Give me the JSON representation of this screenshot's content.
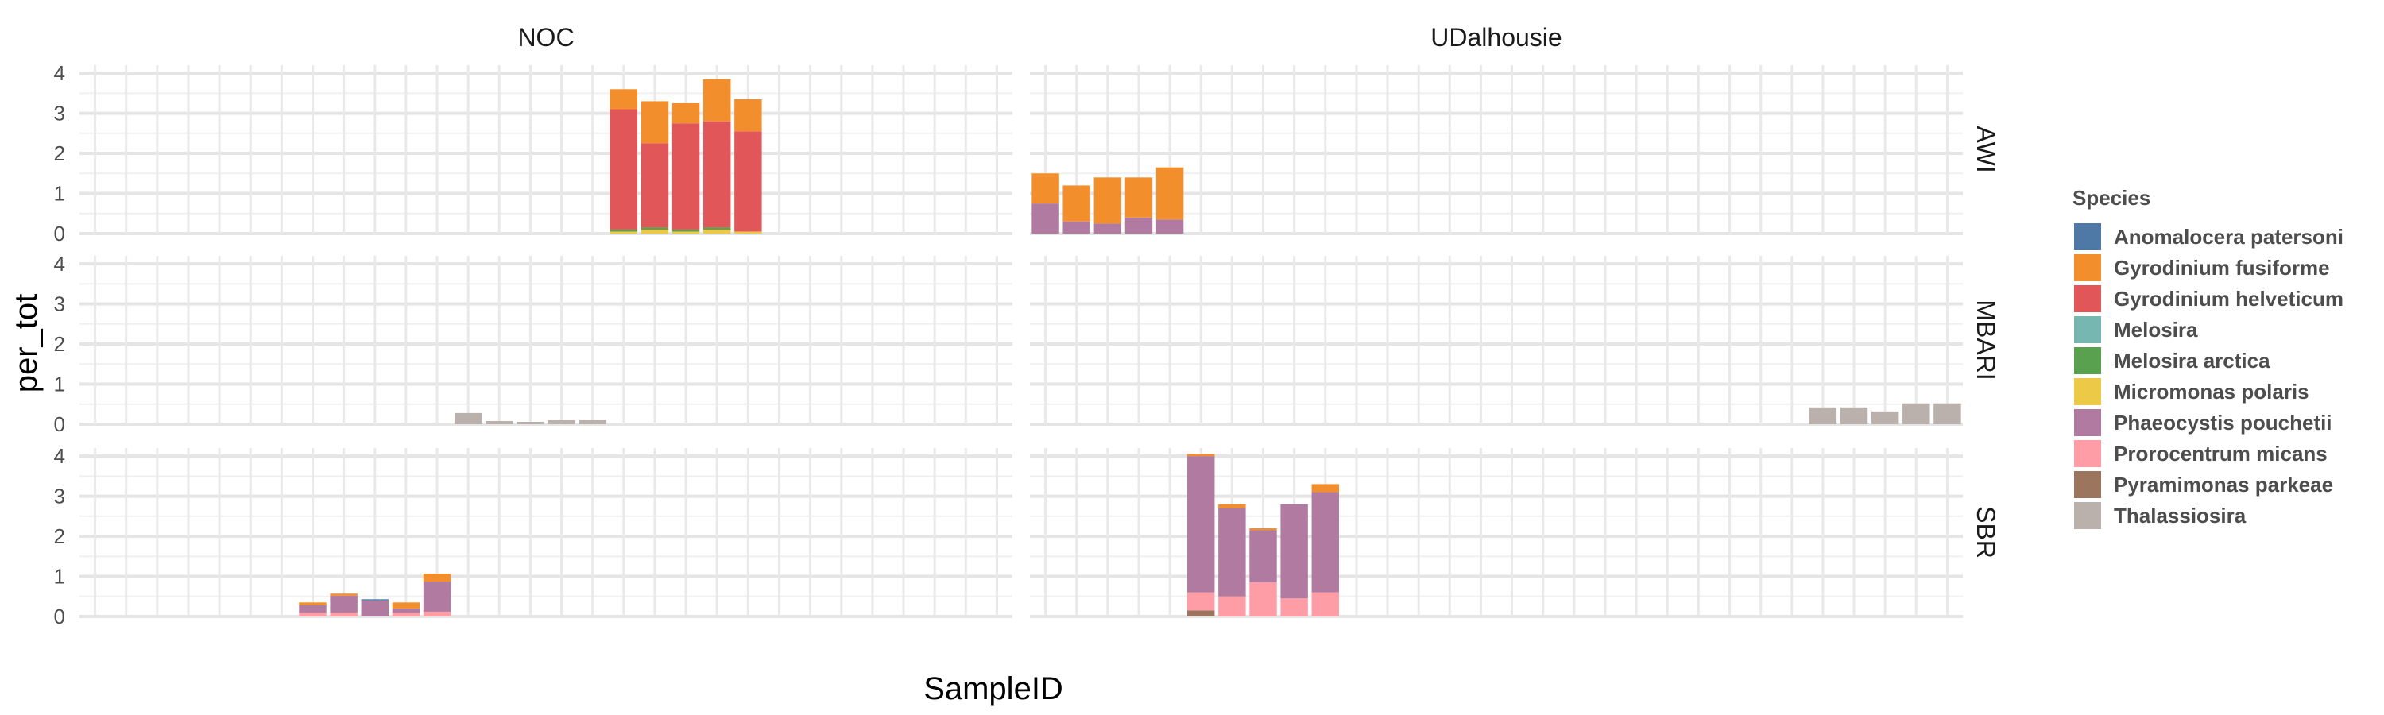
{
  "chart_data": {
    "type": "bar",
    "stacked": true,
    "faceted": true,
    "xlabel": "SampleID",
    "ylabel": "per_tot",
    "ylim": [
      0,
      4.2
    ],
    "yticks": [
      0,
      1,
      2,
      3,
      4
    ],
    "grid": true,
    "legend": {
      "title": "Species",
      "placement": "right"
    },
    "column_facets": [
      "NOC",
      "UDalhousie"
    ],
    "row_facets": [
      "AWI",
      "MBARI",
      "SBR"
    ],
    "species": [
      {
        "name": "Anomalocera patersoni",
        "color": "#4E79A7"
      },
      {
        "name": "Gyrodinium fusiforme",
        "color": "#F28E2B"
      },
      {
        "name": "Gyrodinium helveticum",
        "color": "#E15759"
      },
      {
        "name": "Melosira",
        "color": "#76B7B2"
      },
      {
        "name": "Melosira arctica",
        "color": "#59A14F"
      },
      {
        "name": "Micromonas polaris",
        "color": "#EDC948"
      },
      {
        "name": "Phaeocystis pouchetii",
        "color": "#B07AA1"
      },
      {
        "name": "Prorocentrum micans",
        "color": "#FF9DA7"
      },
      {
        "name": "Pyramimonas parkeae",
        "color": "#9C755F"
      },
      {
        "name": "Thalassiosira",
        "color": "#BAB0AC"
      }
    ],
    "x_tick_count": 30,
    "x_tick_labels_note": "overlapping SampleID tick labels are illegible in the original",
    "panels": [
      {
        "col": "NOC",
        "row": "AWI",
        "bars": [
          {
            "pos": 17,
            "segments": {
              "Gyrodinium fusiforme": 0.5,
              "Gyrodinium helveticum": 3.0,
              "Micromonas polaris": 0.05,
              "Melosira arctica": 0.05
            }
          },
          {
            "pos": 18,
            "segments": {
              "Gyrodinium fusiforme": 1.05,
              "Gyrodinium helveticum": 2.1,
              "Micromonas polaris": 0.1,
              "Melosira arctica": 0.05
            }
          },
          {
            "pos": 19,
            "segments": {
              "Gyrodinium fusiforme": 0.5,
              "Gyrodinium helveticum": 2.65,
              "Micromonas polaris": 0.05,
              "Melosira arctica": 0.05
            }
          },
          {
            "pos": 20,
            "segments": {
              "Gyrodinium fusiforme": 1.05,
              "Gyrodinium helveticum": 2.65,
              "Micromonas polaris": 0.1,
              "Melosira arctica": 0.05
            }
          },
          {
            "pos": 21,
            "segments": {
              "Gyrodinium fusiforme": 0.8,
              "Gyrodinium helveticum": 2.5,
              "Micromonas polaris": 0.05
            }
          }
        ]
      },
      {
        "col": "UDalhousie",
        "row": "AWI",
        "bars": [
          {
            "pos": 0,
            "segments": {
              "Phaeocystis pouchetii": 0.75,
              "Gyrodinium fusiforme": 0.75
            }
          },
          {
            "pos": 1,
            "segments": {
              "Phaeocystis pouchetii": 0.3,
              "Gyrodinium fusiforme": 0.9
            }
          },
          {
            "pos": 2,
            "segments": {
              "Phaeocystis pouchetii": 0.25,
              "Gyrodinium fusiforme": 1.15
            }
          },
          {
            "pos": 3,
            "segments": {
              "Phaeocystis pouchetii": 0.4,
              "Gyrodinium fusiforme": 1.0
            }
          },
          {
            "pos": 4,
            "segments": {
              "Phaeocystis pouchetii": 0.35,
              "Gyrodinium fusiforme": 1.3
            }
          }
        ]
      },
      {
        "col": "NOC",
        "row": "MBARI",
        "bars": [
          {
            "pos": 12,
            "segments": {
              "Thalassiosira": 0.28
            }
          },
          {
            "pos": 13,
            "segments": {
              "Thalassiosira": 0.08
            }
          },
          {
            "pos": 14,
            "segments": {
              "Thalassiosira": 0.06
            }
          },
          {
            "pos": 15,
            "segments": {
              "Thalassiosira": 0.1
            }
          },
          {
            "pos": 16,
            "segments": {
              "Thalassiosira": 0.1
            }
          }
        ]
      },
      {
        "col": "UDalhousie",
        "row": "MBARI",
        "bars": [
          {
            "pos": 25,
            "segments": {
              "Thalassiosira": 0.42
            }
          },
          {
            "pos": 26,
            "segments": {
              "Thalassiosira": 0.42
            }
          },
          {
            "pos": 27,
            "segments": {
              "Thalassiosira": 0.32
            }
          },
          {
            "pos": 28,
            "segments": {
              "Thalassiosira": 0.52
            }
          },
          {
            "pos": 29,
            "segments": {
              "Thalassiosira": 0.52
            }
          }
        ]
      },
      {
        "col": "NOC",
        "row": "SBR",
        "bars": [
          {
            "pos": 7,
            "segments": {
              "Prorocentrum micans": 0.1,
              "Phaeocystis pouchetii": 0.18,
              "Gyrodinium fusiforme": 0.07
            }
          },
          {
            "pos": 8,
            "segments": {
              "Prorocentrum micans": 0.1,
              "Phaeocystis pouchetii": 0.42,
              "Gyrodinium fusiforme": 0.05
            }
          },
          {
            "pos": 9,
            "segments": {
              "Phaeocystis pouchetii": 0.4,
              "Anomalocera patersoni": 0.03
            }
          },
          {
            "pos": 10,
            "segments": {
              "Prorocentrum micans": 0.1,
              "Phaeocystis pouchetii": 0.1,
              "Gyrodinium fusiforme": 0.15
            }
          },
          {
            "pos": 11,
            "segments": {
              "Prorocentrum micans": 0.12,
              "Phaeocystis pouchetii": 0.75,
              "Gyrodinium fusiforme": 0.2
            }
          }
        ]
      },
      {
        "col": "UDalhousie",
        "row": "SBR",
        "bars": [
          {
            "pos": 5,
            "segments": {
              "Pyramimonas parkeae": 0.15,
              "Prorocentrum micans": 0.45,
              "Phaeocystis pouchetii": 3.4,
              "Gyrodinium fusiforme": 0.05
            }
          },
          {
            "pos": 6,
            "segments": {
              "Prorocentrum micans": 0.5,
              "Phaeocystis pouchetii": 2.2,
              "Gyrodinium fusiforme": 0.1
            }
          },
          {
            "pos": 7,
            "segments": {
              "Prorocentrum micans": 0.85,
              "Phaeocystis pouchetii": 1.3,
              "Gyrodinium fusiforme": 0.05
            }
          },
          {
            "pos": 8,
            "segments": {
              "Prorocentrum micans": 0.45,
              "Phaeocystis pouchetii": 2.35
            }
          },
          {
            "pos": 9,
            "segments": {
              "Prorocentrum micans": 0.6,
              "Phaeocystis pouchetii": 2.5,
              "Gyrodinium fusiforme": 0.2
            }
          }
        ]
      }
    ]
  }
}
